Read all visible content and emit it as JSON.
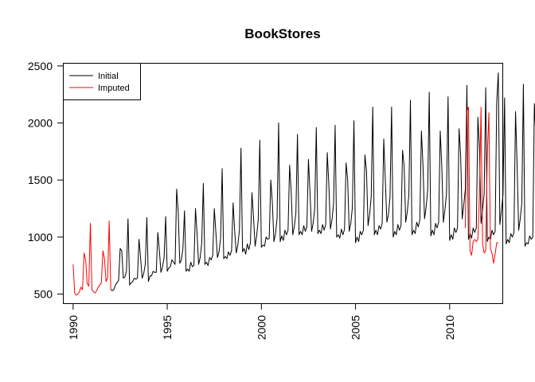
{
  "chart_data": {
    "type": "line",
    "title": "BookStores",
    "xlabel": "",
    "ylabel": "",
    "xlim": [
      1989.5,
      2012.8
    ],
    "ylim": [
      420,
      2520
    ],
    "x_ticks": [
      1990,
      1995,
      2000,
      2005,
      2010
    ],
    "y_ticks": [
      500,
      1000,
      1500,
      2000,
      2500
    ],
    "grid": false,
    "legend_position": "top-left",
    "series": [
      {
        "name": "Initial",
        "color": "#000000",
        "start": 1992.0,
        "frequency": 12,
        "values": [
          540,
          530,
          540,
          580,
          600,
          620,
          900,
          880,
          640,
          650,
          700,
          1160,
          580,
          600,
          610,
          640,
          630,
          640,
          980,
          820,
          640,
          680,
          760,
          1170,
          610,
          660,
          660,
          700,
          690,
          690,
          1040,
          880,
          690,
          740,
          820,
          1180,
          700,
          730,
          740,
          800,
          780,
          760,
          1420,
          1220,
          770,
          800,
          900,
          1230,
          700,
          720,
          700,
          780,
          740,
          750,
          1250,
          1030,
          760,
          820,
          950,
          1470,
          760,
          780,
          750,
          820,
          800,
          840,
          1250,
          1040,
          820,
          870,
          990,
          1600,
          810,
          830,
          810,
          870,
          840,
          880,
          1300,
          1050,
          860,
          930,
          1060,
          1780,
          870,
          900,
          850,
          940,
          890,
          950,
          1390,
          1170,
          920,
          1010,
          1150,
          1850,
          910,
          930,
          920,
          1000,
          980,
          990,
          1500,
          1300,
          960,
          1030,
          1160,
          2000,
          960,
          1010,
          970,
          1060,
          1020,
          1060,
          1630,
          1400,
          1020,
          1090,
          1210,
          1900,
          1020,
          1050,
          1020,
          1100,
          1050,
          1090,
          1680,
          1390,
          1050,
          1120,
          1250,
          1960,
          1030,
          1060,
          1030,
          1110,
          1060,
          1110,
          1740,
          1460,
          1070,
          1150,
          1290,
          1980,
          1000,
          1020,
          990,
          1070,
          1020,
          1070,
          1650,
          1500,
          1050,
          1120,
          1260,
          2020,
          950,
          1000,
          960,
          1050,
          1020,
          1060,
          1720,
          1580,
          1100,
          1200,
          1350,
          2140,
          1020,
          1060,
          1020,
          1100,
          1070,
          1120,
          1860,
          1500,
          1130,
          1200,
          1350,
          2140,
          1000,
          1050,
          1020,
          1110,
          1060,
          1100,
          1760,
          1620,
          1130,
          1220,
          1370,
          2200,
          1020,
          1060,
          1030,
          1130,
          1090,
          1150,
          1930,
          1630,
          1160,
          1260,
          1410,
          2270,
          1010,
          1060,
          1020,
          1120,
          1080,
          1130,
          1930,
          1620,
          1130,
          1240,
          1380,
          2230,
          970,
          1020,
          980,
          1080,
          1040,
          1080,
          1950,
          1720,
          1160,
          1280,
          1420,
          2330,
          980,
          1030,
          990,
          1080,
          1040,
          1080,
          2050,
          1780,
          1120,
          1240,
          1380,
          2310,
          960,
          1000,
          980,
          1060,
          1020,
          1050,
          2180,
          2440,
          1110,
          1230,
          1370,
          2220,
          940,
          980,
          950,
          1030,
          1000,
          1040,
          2100,
          1630,
          1060,
          1160,
          1300,
          2340,
          920,
          950,
          940,
          1010,
          980,
          1000,
          2170,
          1850,
          960,
          1050,
          1180,
          2190,
          860,
          900,
          880,
          950,
          930,
          960,
          1970,
          1700,
          950,
          1000,
          1080,
          2180
        ]
      },
      {
        "name": "Imputed",
        "color": "#ff0000",
        "segments": [
          {
            "start": 1990.0,
            "frequency": 12,
            "values": [
              760,
              510,
              490,
              500,
              520,
              560,
              540,
              860,
              800,
              590,
              570,
              1120,
              540,
              520,
              510,
              530,
              560,
              580,
              600,
              880,
              810,
              610,
              640,
              1140,
              540
            ]
          },
          {
            "start": 2010.8333,
            "frequency": 12,
            "values": [
              1080,
              2100,
              2140,
              880,
              840,
              960,
              980,
              960,
              980,
              1380,
              2140,
              940,
              860,
              880,
              1720,
              2090,
              900,
              860,
              770,
              850,
              950,
              950
            ]
          }
        ]
      }
    ]
  }
}
